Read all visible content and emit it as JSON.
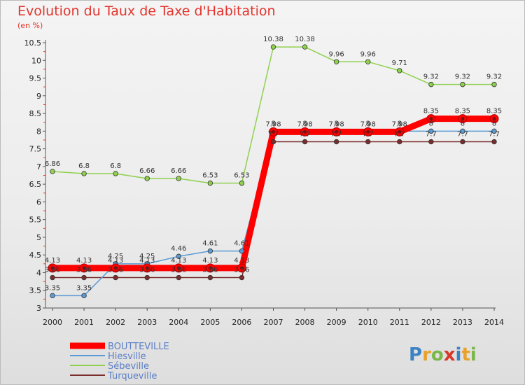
{
  "chart_data": {
    "type": "line",
    "title": "Evolution du Taux de Taxe d'Habitation",
    "subtitle": "(en %)",
    "x": [
      "2000",
      "2001",
      "2002",
      "2003",
      "2004",
      "2005",
      "2006",
      "2007",
      "2008",
      "2009",
      "2010",
      "2011",
      "2012",
      "2013",
      "2014"
    ],
    "ylim": [
      3,
      10.5
    ],
    "yticks": [
      3,
      3.5,
      4,
      4.5,
      5,
      5.5,
      6,
      6.5,
      7,
      7.5,
      8,
      8.5,
      9,
      9.5,
      10,
      10.5
    ],
    "ytick_labels": [
      "3",
      "3.5",
      "4",
      "4.5",
      "5",
      "5.5",
      "6",
      "6.5",
      "7",
      "7.5",
      "8",
      "8.5",
      "9",
      "9.5",
      "10",
      "10.5"
    ],
    "grid": false,
    "legend_position": "bottom-left",
    "series": [
      {
        "name": "BOUTTEVILLE",
        "color": "#ff0000",
        "values": [
          4.13,
          4.13,
          4.13,
          4.13,
          4.13,
          4.13,
          4.13,
          7.98,
          7.98,
          7.98,
          7.98,
          7.98,
          8.35,
          8.35,
          8.35
        ],
        "labels": [
          "4.13",
          "4.13",
          "4.13",
          "4.13",
          "4.13",
          "4.13",
          "4.13",
          "7.98",
          "7.98",
          "7.98",
          "7.98",
          "7.98",
          "8.35",
          "8.35",
          "8.35"
        ]
      },
      {
        "name": "Hiesville",
        "color": "#5b9bd5",
        "values": [
          3.35,
          3.35,
          4.25,
          4.25,
          4.46,
          4.61,
          4.61,
          8,
          8,
          8,
          8,
          8,
          8,
          8,
          8
        ],
        "labels": [
          "3.35",
          "3.35",
          "4.25",
          "4.25",
          "4.46",
          "4.61",
          "4.61",
          "8",
          "8",
          "8",
          "8",
          "8",
          "8",
          "8",
          "8"
        ]
      },
      {
        "name": "Sébeville",
        "color": "#8fd14f",
        "values": [
          6.86,
          6.8,
          6.8,
          6.66,
          6.66,
          6.53,
          6.53,
          10.38,
          10.38,
          9.96,
          9.96,
          9.71,
          9.32,
          9.32,
          9.32
        ],
        "labels": [
          "6.86",
          "6.8",
          "6.8",
          "6.66",
          "6.66",
          "6.53",
          "6.53",
          "10.38",
          "10.38",
          "9.96",
          "9.96",
          "9.71",
          "9.32",
          "9.32",
          "9.32"
        ]
      },
      {
        "name": "Turqueville",
        "color": "#7b2c2c",
        "values": [
          3.86,
          3.86,
          3.86,
          3.86,
          3.86,
          3.86,
          3.86,
          7.7,
          7.7,
          7.7,
          7.7,
          7.7,
          7.7,
          7.7,
          7.7
        ],
        "labels": [
          "3.86",
          "3.86",
          "3.86",
          "3.86",
          "3.86",
          "3.86",
          "3.86",
          "7.7",
          "7.7",
          "7.7",
          "7.7",
          "7.7",
          "7.7",
          "7.7",
          "7.7"
        ]
      }
    ]
  },
  "logo": {
    "text": "Proxiti"
  }
}
